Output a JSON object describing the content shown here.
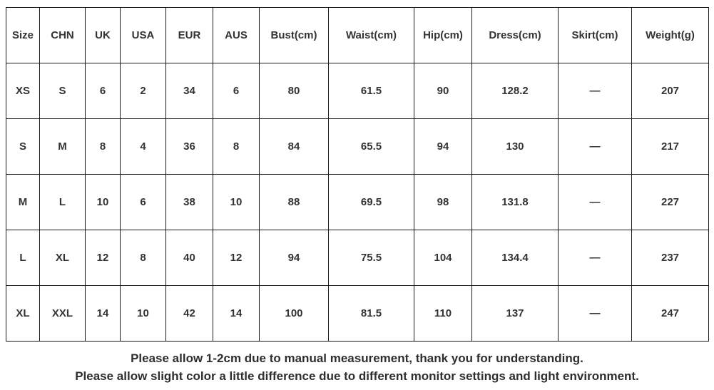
{
  "table": {
    "headers": [
      "Size",
      "CHN",
      "UK",
      "USA",
      "EUR",
      "AUS",
      "Bust(cm)",
      "Waist(cm)",
      "Hip(cm)",
      "Dress(cm)",
      "Skirt(cm)",
      "Weight(g)"
    ],
    "rows": [
      [
        "XS",
        "S",
        "6",
        "2",
        "34",
        "6",
        "80",
        "61.5",
        "90",
        "128.2",
        "—",
        "207"
      ],
      [
        "S",
        "M",
        "8",
        "4",
        "36",
        "8",
        "84",
        "65.5",
        "94",
        "130",
        "—",
        "217"
      ],
      [
        "M",
        "L",
        "10",
        "6",
        "38",
        "10",
        "88",
        "69.5",
        "98",
        "131.8",
        "—",
        "227"
      ],
      [
        "L",
        "XL",
        "12",
        "8",
        "40",
        "12",
        "94",
        "75.5",
        "104",
        "134.4",
        "—",
        "237"
      ],
      [
        "XL",
        "XXL",
        "14",
        "10",
        "42",
        "14",
        "100",
        "81.5",
        "110",
        "137",
        "—",
        "247"
      ]
    ]
  },
  "notes": {
    "line1": "Please allow 1-2cm due to manual measurement, thank you for understanding.",
    "line2": "Please allow slight color a little difference due to different monitor settings and light environment."
  },
  "colors": {
    "border": "#1a1a1a",
    "text": "#333333",
    "background": "#ffffff"
  }
}
